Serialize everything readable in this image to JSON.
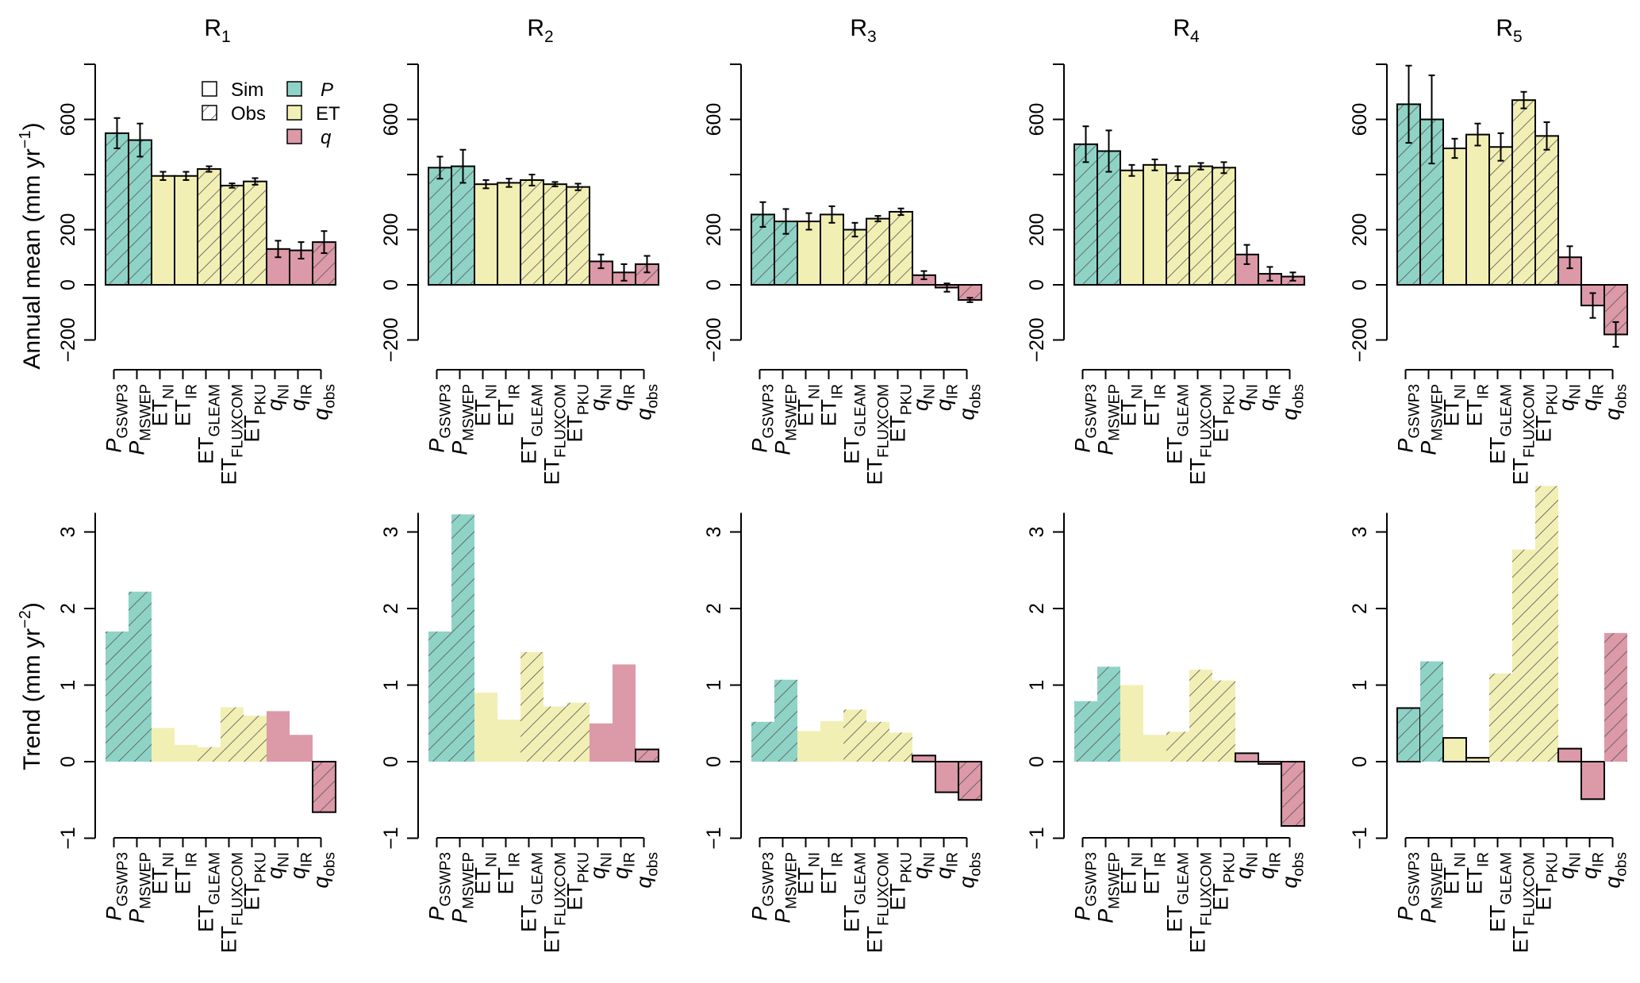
{
  "colors": {
    "P": "#8fd3c6",
    "ET": "#f1efb4",
    "q": "#dc99a8",
    "hatch": "#555555",
    "outline": "#000000"
  },
  "categories": [
    {
      "base": "P",
      "sub": "GSWP3",
      "italic": true,
      "var": "P"
    },
    {
      "base": "P",
      "sub": "MSWEP",
      "italic": true,
      "var": "P"
    },
    {
      "base": "ET",
      "sub": "NI",
      "italic": false,
      "var": "ET"
    },
    {
      "base": "ET",
      "sub": "IR",
      "italic": false,
      "var": "ET"
    },
    {
      "base": "ET",
      "sub": "GLEAM",
      "italic": false,
      "var": "ET"
    },
    {
      "base": "ET",
      "sub": "FLUXCOM",
      "italic": false,
      "var": "ET"
    },
    {
      "base": "ET",
      "sub": "PKU",
      "italic": false,
      "var": "ET"
    },
    {
      "base": "q",
      "sub": "NI",
      "italic": true,
      "var": "q"
    },
    {
      "base": "q",
      "sub": "IR",
      "italic": true,
      "var": "q"
    },
    {
      "base": "q",
      "sub": "obs",
      "italic": true,
      "var": "q"
    }
  ],
  "obs": [
    true,
    true,
    false,
    false,
    true,
    true,
    true,
    false,
    false,
    true
  ],
  "mean_outlined": [
    true,
    true,
    true,
    true,
    true,
    true,
    true,
    true,
    true,
    true
  ],
  "legend": {
    "sim_label": "Sim",
    "obs_label": "Obs",
    "p_label": "P",
    "et_label": "ET",
    "q_label": "q"
  },
  "row_labels": {
    "mean": {
      "main": "Annual mean (mm yr",
      "sup": "−1",
      "end": ")"
    },
    "trend": {
      "main": "Trend (mm yr",
      "sup": "−2",
      "end": ")"
    }
  },
  "chart_data": [
    {
      "type": "bar",
      "row": "mean",
      "title": "R",
      "title_sub": "1",
      "ylim": [
        -200,
        800
      ],
      "yticks": [
        -200,
        0,
        200,
        600
      ],
      "ytick_labels": [
        "−200",
        "0",
        "200",
        "600"
      ],
      "values": [
        550,
        525,
        395,
        395,
        420,
        360,
        375,
        130,
        125,
        155
      ],
      "errors": [
        55,
        60,
        15,
        15,
        10,
        8,
        12,
        30,
        30,
        40
      ]
    },
    {
      "type": "bar",
      "row": "mean",
      "title": "R",
      "title_sub": "2",
      "ylim": [
        -200,
        800
      ],
      "yticks": [
        -200,
        0,
        200,
        600
      ],
      "ytick_labels": [
        "−200",
        "0",
        "200",
        "600"
      ],
      "values": [
        425,
        430,
        365,
        370,
        380,
        365,
        355,
        85,
        45,
        75
      ],
      "errors": [
        40,
        60,
        15,
        15,
        20,
        8,
        12,
        25,
        30,
        30
      ]
    },
    {
      "type": "bar",
      "row": "mean",
      "title": "R",
      "title_sub": "3",
      "ylim": [
        -200,
        800
      ],
      "yticks": [
        -200,
        0,
        200,
        600
      ],
      "ytick_labels": [
        "−200",
        "0",
        "200",
        "600"
      ],
      "values": [
        255,
        230,
        230,
        255,
        200,
        240,
        265,
        35,
        -10,
        -55
      ],
      "errors": [
        45,
        45,
        30,
        30,
        25,
        10,
        12,
        15,
        15,
        8
      ]
    },
    {
      "type": "bar",
      "row": "mean",
      "title": "R",
      "title_sub": "4",
      "ylim": [
        -200,
        800
      ],
      "yticks": [
        -200,
        0,
        200,
        600
      ],
      "ytick_labels": [
        "−200",
        "0",
        "200",
        "600"
      ],
      "values": [
        510,
        485,
        415,
        435,
        405,
        430,
        425,
        110,
        40,
        30
      ],
      "errors": [
        65,
        75,
        20,
        20,
        25,
        12,
        20,
        35,
        25,
        15
      ]
    },
    {
      "type": "bar",
      "row": "mean",
      "title": "R",
      "title_sub": "5",
      "ylim": [
        -200,
        800
      ],
      "yticks": [
        -200,
        0,
        200,
        600
      ],
      "ytick_labels": [
        "−200",
        "0",
        "200",
        "600"
      ],
      "values": [
        655,
        600,
        495,
        545,
        500,
        670,
        540,
        100,
        -75,
        -180
      ],
      "errors": [
        140,
        160,
        35,
        40,
        50,
        30,
        50,
        40,
        45,
        45
      ]
    },
    {
      "type": "bar",
      "row": "trend",
      "title_sub": "1",
      "ylim": [
        -1,
        3.25
      ],
      "yticks": [
        -1,
        0,
        1,
        2,
        3
      ],
      "ytick_labels": [
        "−1",
        "0",
        "1",
        "2",
        "3"
      ],
      "values": [
        1.7,
        2.22,
        0.44,
        0.22,
        0.19,
        0.71,
        0.6,
        0.66,
        0.35,
        -0.66
      ],
      "outlined": [
        false,
        false,
        false,
        false,
        false,
        false,
        false,
        false,
        false,
        true
      ]
    },
    {
      "type": "bar",
      "row": "trend",
      "title_sub": "2",
      "ylim": [
        -1,
        3.25
      ],
      "yticks": [
        -1,
        0,
        1,
        2,
        3
      ],
      "ytick_labels": [
        "−1",
        "0",
        "1",
        "2",
        "3"
      ],
      "values": [
        1.7,
        3.23,
        0.9,
        0.55,
        1.43,
        0.72,
        0.77,
        0.5,
        1.27,
        0.16
      ],
      "outlined": [
        false,
        false,
        false,
        false,
        false,
        false,
        false,
        false,
        false,
        true
      ]
    },
    {
      "type": "bar",
      "row": "trend",
      "title_sub": "3",
      "ylim": [
        -1,
        3.25
      ],
      "yticks": [
        -1,
        0,
        1,
        2,
        3
      ],
      "ytick_labels": [
        "−1",
        "0",
        "1",
        "2",
        "3"
      ],
      "values": [
        0.52,
        1.07,
        0.4,
        0.53,
        0.68,
        0.52,
        0.38,
        0.08,
        -0.4,
        -0.5
      ],
      "outlined": [
        false,
        false,
        false,
        false,
        false,
        false,
        false,
        true,
        true,
        true
      ]
    },
    {
      "type": "bar",
      "row": "trend",
      "title_sub": "4",
      "ylim": [
        -1,
        3.25
      ],
      "yticks": [
        -1,
        0,
        1,
        2,
        3
      ],
      "ytick_labels": [
        "−1",
        "0",
        "1",
        "2",
        "3"
      ],
      "values": [
        0.79,
        1.24,
        1.0,
        0.35,
        0.39,
        1.2,
        1.06,
        0.11,
        -0.03,
        -0.84
      ],
      "outlined": [
        false,
        false,
        false,
        false,
        false,
        false,
        false,
        true,
        true,
        true
      ]
    },
    {
      "type": "bar",
      "row": "trend",
      "title_sub": "5",
      "ylim": [
        -1,
        3.25
      ],
      "yticks": [
        -1,
        0,
        1,
        2,
        3
      ],
      "ytick_labels": [
        "−1",
        "0",
        "1",
        "2",
        "3"
      ],
      "values": [
        0.7,
        1.31,
        0.31,
        0.05,
        1.15,
        2.77,
        3.6,
        0.17,
        -0.49,
        1.68
      ],
      "outlined": [
        true,
        false,
        true,
        true,
        false,
        false,
        false,
        true,
        true,
        false
      ]
    }
  ]
}
